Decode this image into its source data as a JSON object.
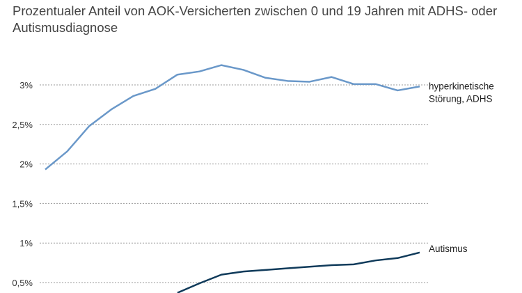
{
  "chart_data": {
    "type": "line",
    "title": "",
    "subtitle": "Prozentualer Anteil von AOK-Versicherten zwischen 0 und 19 Jahren mit ADHS- oder Autismusdiagnose",
    "xlabel": "",
    "ylabel": "",
    "ylim": [
      0.4,
      3.45
    ],
    "yticks": [
      {
        "value": 0.5,
        "label": "0,5%"
      },
      {
        "value": 1.0,
        "label": "1%"
      },
      {
        "value": 1.5,
        "label": "1,5%"
      },
      {
        "value": 2.0,
        "label": "2%"
      },
      {
        "value": 2.5,
        "label": "2,5%"
      },
      {
        "value": 3.0,
        "label": "3%"
      }
    ],
    "grid": true,
    "series": [
      {
        "name": "hyperkinetische Störung, ADHS",
        "label_lines": [
          "hyperkinetische",
          "Störung, ADHS"
        ],
        "color": "#6a98c9",
        "values": [
          1.93,
          2.16,
          2.48,
          2.69,
          2.86,
          2.95,
          3.13,
          3.17,
          3.25,
          3.19,
          3.09,
          3.05,
          3.04,
          3.1,
          3.01,
          3.01,
          2.93,
          2.98
        ]
      },
      {
        "name": "Autismus",
        "label_lines": [
          "Autismus"
        ],
        "color": "#0f3a5a",
        "values": [
          null,
          null,
          null,
          null,
          null,
          null,
          0.37,
          0.49,
          0.6,
          0.64,
          0.66,
          0.68,
          0.7,
          0.72,
          0.73,
          0.78,
          0.81,
          0.88
        ]
      }
    ]
  },
  "header": {
    "title": ""
  }
}
